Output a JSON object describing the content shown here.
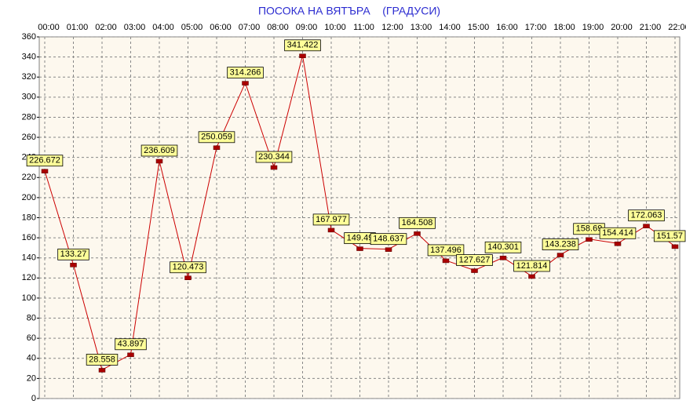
{
  "chart_data": {
    "type": "line",
    "title": "ПОСОКА НА ВЯТЪРА    (ГРАДУСИ)",
    "categories": [
      "00:00",
      "01:00",
      "02:00",
      "03:00",
      "04:00",
      "05:00",
      "06:00",
      "07:00",
      "08:00",
      "09:00",
      "10:00",
      "11:00",
      "12:00",
      "13:00",
      "14:00",
      "15:00",
      "16:00",
      "17:00",
      "18:00",
      "19:00",
      "20:00",
      "21:00",
      "22:00"
    ],
    "series": [
      {
        "name": "ПОСОКА НА ВЯТЪРА",
        "color": "#cc0000",
        "values": [
          226.672,
          133.27,
          28.558,
          43.897,
          236.609,
          120.473,
          250.059,
          314.266,
          230.344,
          341.422,
          167.977,
          149.49,
          148.637,
          164.508,
          137.496,
          127.627,
          140.301,
          121.814,
          143.238,
          158.69,
          154.414,
          172.063,
          151.57
        ]
      }
    ],
    "ylim": [
      0,
      360
    ],
    "yticks": [
      0,
      20,
      40,
      60,
      80,
      100,
      120,
      140,
      160,
      180,
      200,
      220,
      240,
      260,
      280,
      300,
      320,
      340,
      360
    ],
    "grid": true
  }
}
